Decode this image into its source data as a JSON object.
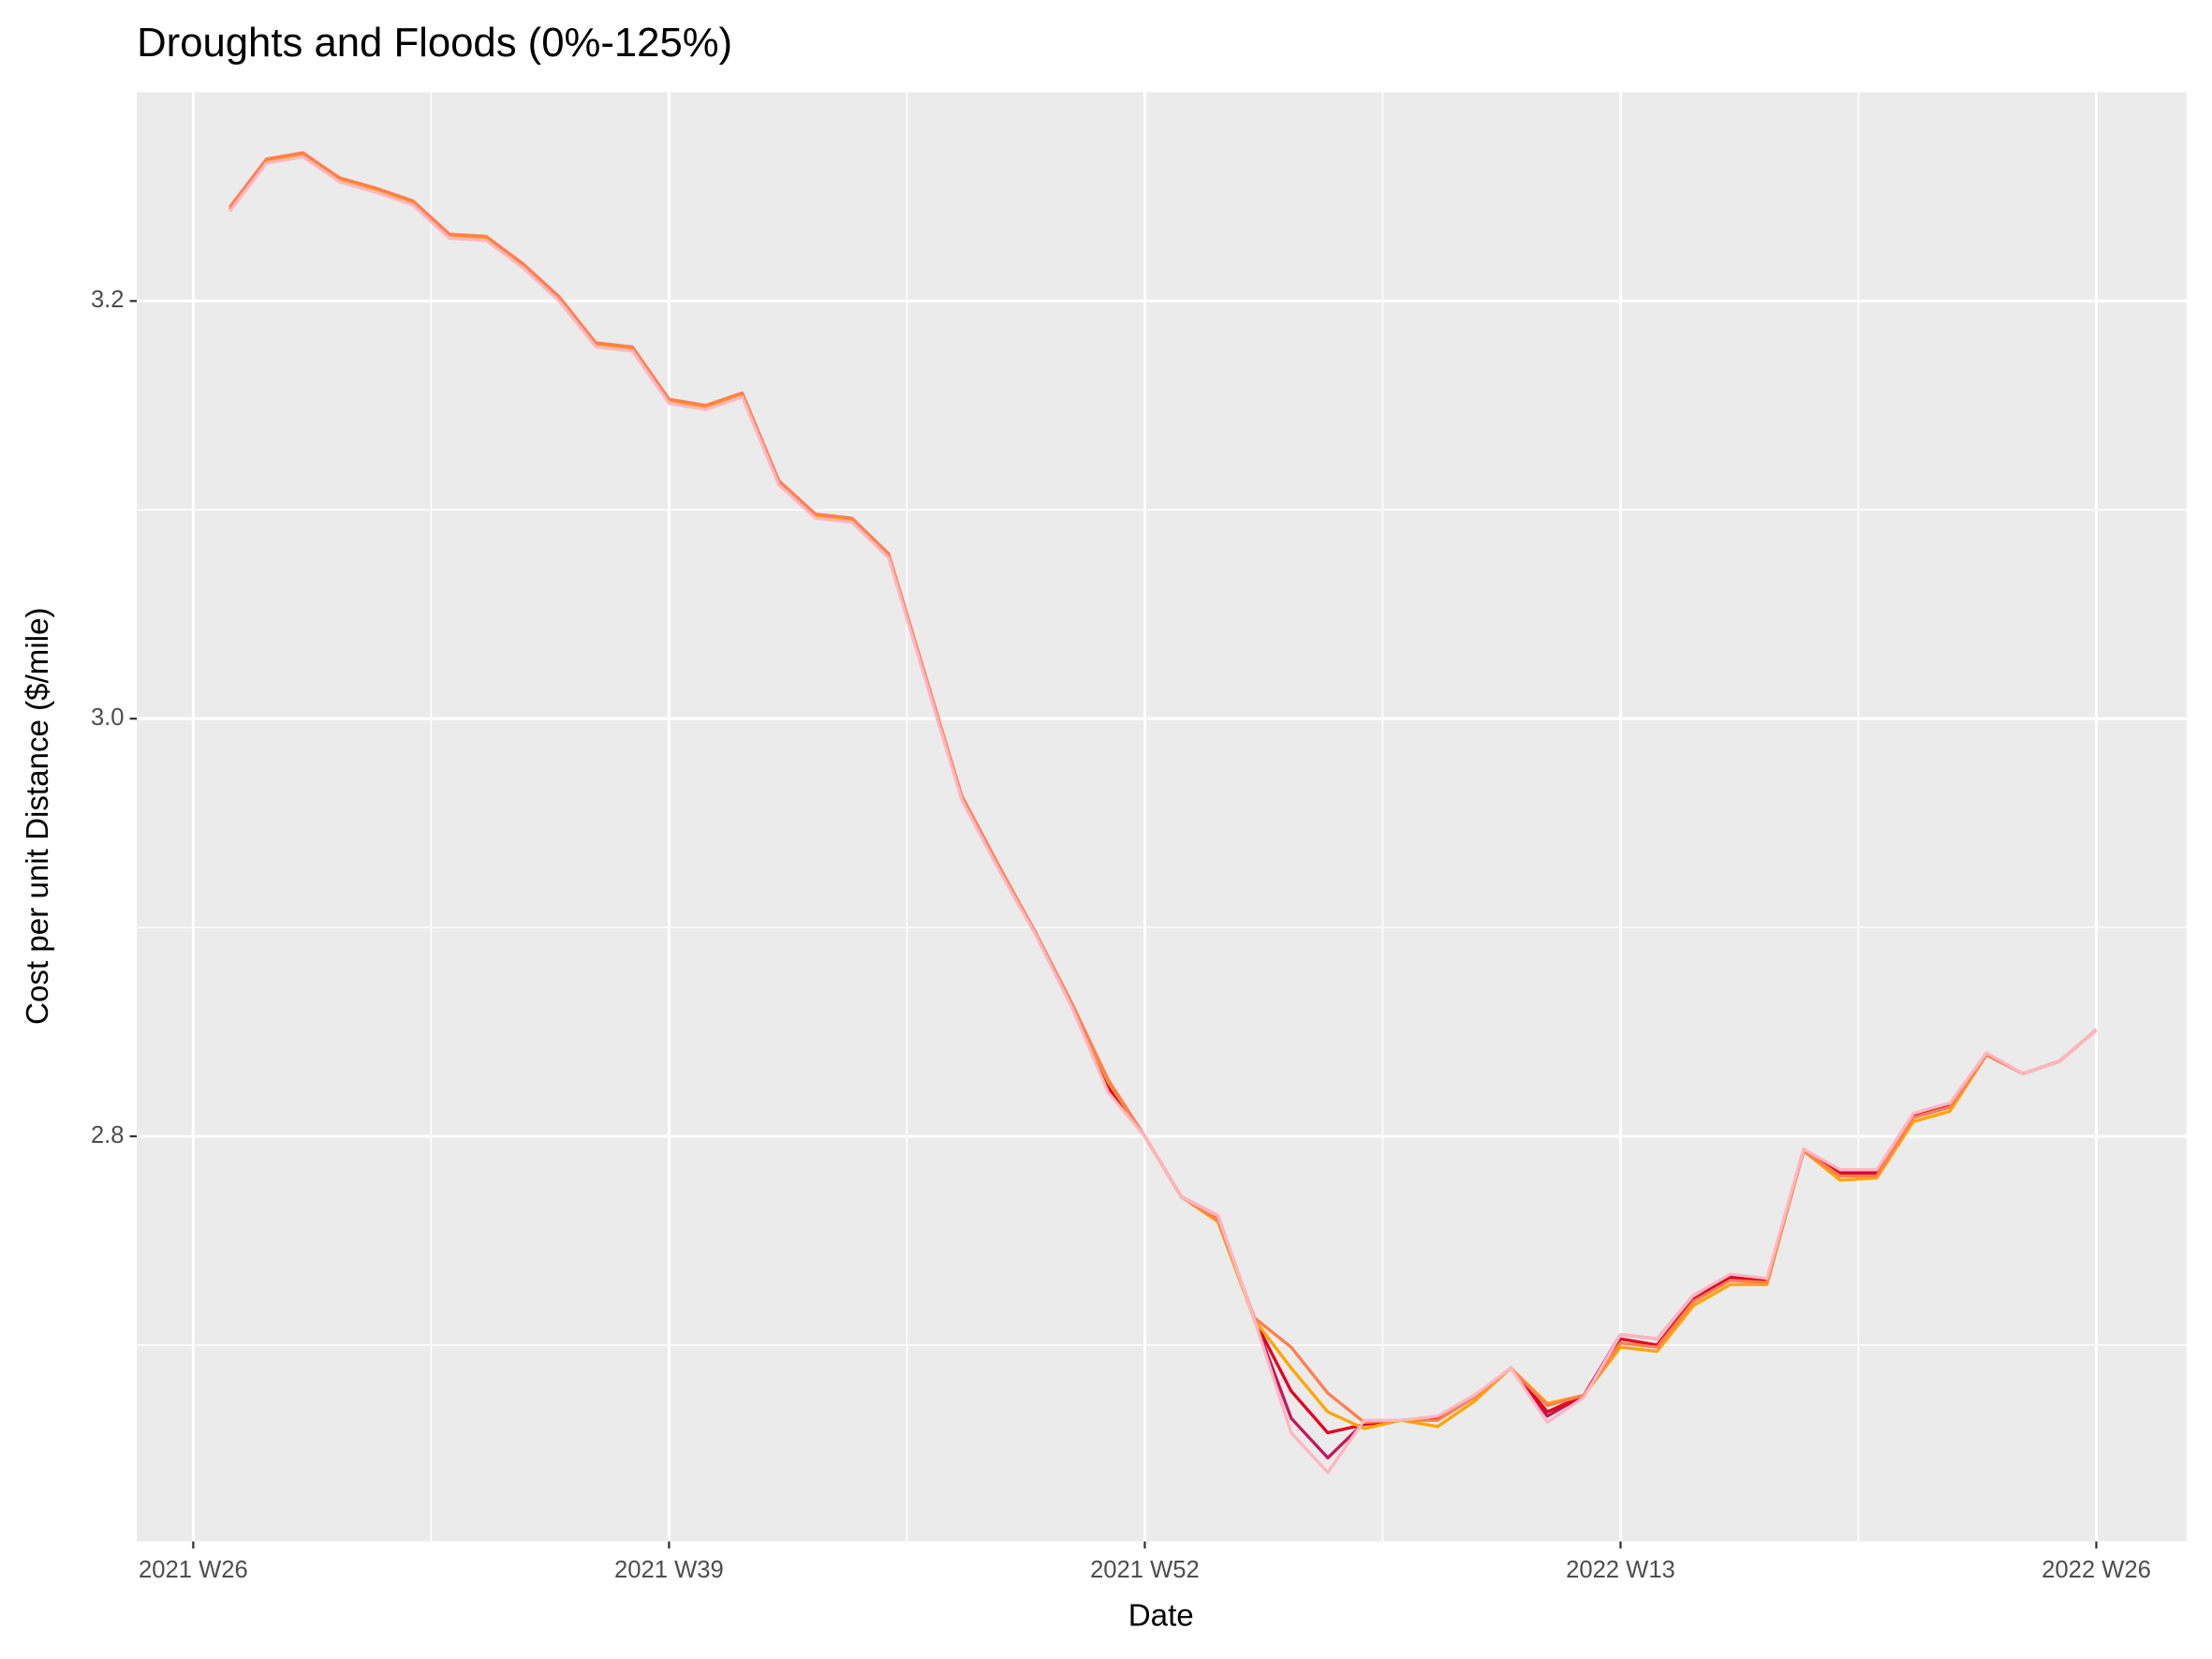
{
  "chart_data": {
    "type": "line",
    "title": "Droughts and Floods (0%-125%)",
    "x_label": "Date",
    "y_label": "Cost per unit Distance ($/mile)",
    "categories": [
      "2021 W26",
      null,
      null,
      null,
      null,
      null,
      null,
      null,
      null,
      null,
      null,
      null,
      null,
      "2021 W39",
      null,
      null,
      null,
      null,
      null,
      null,
      null,
      null,
      null,
      null,
      null,
      null,
      "2021 W52",
      null,
      null,
      null,
      null,
      null,
      null,
      null,
      null,
      null,
      null,
      null,
      null,
      "2022 W13",
      null,
      null,
      null,
      null,
      null,
      null,
      null,
      null,
      null,
      null,
      null,
      null,
      "2022 W26"
    ],
    "ylim": [
      2.606,
      3.3
    ],
    "yticks": [
      2.8,
      {
        "value": 3,
        "label": "3.0"
      },
      3.2
    ],
    "grid": true,
    "series": [
      {
        "color": "#c2185b",
        "values": [
          null,
          3.244,
          3.267,
          3.27,
          3.258,
          3.253,
          3.247,
          3.231,
          3.23,
          3.217,
          3.201,
          3.179,
          3.177,
          3.152,
          3.149,
          3.155,
          3.113,
          3.097,
          3.095,
          3.078,
          3.02,
          2.962,
          2.929,
          2.898,
          2.863,
          2.822,
          2.8,
          2.771,
          2.762,
          2.712,
          2.665,
          2.646,
          2.663,
          2.664,
          2.665,
          2.675,
          2.689,
          2.666,
          2.676,
          2.705,
          2.703,
          2.724,
          2.733,
          2.731,
          2.793,
          2.783,
          2.783,
          2.81,
          2.815,
          2.839,
          2.83,
          2.836,
          2.851
        ]
      },
      {
        "color": "#e3001b",
        "values": [
          null,
          3.244,
          3.267,
          3.27,
          3.258,
          3.253,
          3.247,
          3.231,
          3.23,
          3.217,
          3.201,
          3.179,
          3.177,
          3.152,
          3.149,
          3.155,
          3.113,
          3.097,
          3.095,
          3.078,
          3.02,
          2.962,
          2.929,
          2.898,
          2.863,
          2.824,
          2.8,
          2.771,
          2.761,
          2.712,
          2.678,
          2.658,
          2.662,
          2.664,
          2.665,
          2.675,
          2.689,
          2.668,
          2.676,
          2.703,
          2.7,
          2.722,
          2.732,
          2.731,
          2.793,
          2.782,
          2.782,
          2.809,
          2.814,
          2.839,
          2.83,
          2.836,
          2.851
        ]
      },
      {
        "color": "#ffa500",
        "values": [
          null,
          3.244,
          3.267,
          3.27,
          3.258,
          3.253,
          3.247,
          3.231,
          3.23,
          3.217,
          3.201,
          3.179,
          3.177,
          3.152,
          3.149,
          3.155,
          3.113,
          3.097,
          3.095,
          3.078,
          3.02,
          2.962,
          2.929,
          2.898,
          2.863,
          2.826,
          2.8,
          2.771,
          2.759,
          2.712,
          2.689,
          2.668,
          2.66,
          2.664,
          2.661,
          2.673,
          2.689,
          2.672,
          2.676,
          2.699,
          2.697,
          2.719,
          2.729,
          2.729,
          2.793,
          2.779,
          2.78,
          2.807,
          2.812,
          2.839,
          2.83,
          2.836,
          2.851
        ]
      },
      {
        "color": "#ff7f50",
        "values": [
          null,
          3.245,
          3.268,
          3.271,
          3.259,
          3.254,
          3.248,
          3.232,
          3.231,
          3.218,
          3.202,
          3.18,
          3.178,
          3.153,
          3.15,
          3.156,
          3.114,
          3.098,
          3.096,
          3.079,
          3.021,
          2.963,
          2.93,
          2.898,
          2.864,
          2.827,
          2.8,
          2.771,
          2.76,
          2.713,
          2.699,
          2.677,
          2.663,
          2.664,
          2.664,
          2.675,
          2.689,
          2.671,
          2.676,
          2.701,
          2.699,
          2.721,
          2.731,
          2.73,
          2.793,
          2.781,
          2.781,
          2.809,
          2.814,
          2.839,
          2.83,
          2.836,
          2.851
        ]
      },
      {
        "color": "#ffb6c1",
        "values": [
          null,
          3.243,
          3.266,
          3.269,
          3.257,
          3.252,
          3.246,
          3.23,
          3.229,
          3.216,
          3.2,
          3.178,
          3.176,
          3.151,
          3.148,
          3.154,
          3.112,
          3.096,
          3.094,
          3.077,
          3.019,
          2.961,
          2.928,
          2.897,
          2.862,
          2.821,
          2.8,
          2.771,
          2.762,
          2.712,
          2.658,
          2.639,
          2.664,
          2.664,
          2.666,
          2.676,
          2.689,
          2.663,
          2.675,
          2.705,
          2.703,
          2.724,
          2.734,
          2.732,
          2.794,
          2.784,
          2.784,
          2.811,
          2.816,
          2.84,
          2.83,
          2.836,
          2.851
        ]
      }
    ]
  }
}
